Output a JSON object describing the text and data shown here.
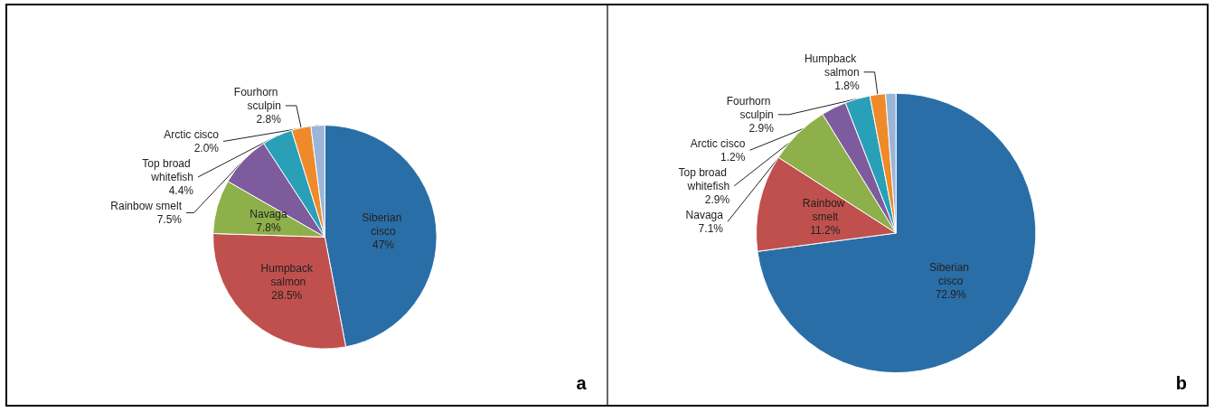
{
  "chart_data": [
    {
      "type": "pie",
      "categories": [
        "Siberian cisco",
        "Humpback salmon",
        "Navaga",
        "Rainbow smelt",
        "Top broad whitefish",
        "Fourhorn sculpin",
        "Arctic cisco"
      ],
      "values": [
        47,
        28.5,
        7.8,
        7.5,
        4.4,
        2.8,
        2.0
      ],
      "value_labels": [
        "47%",
        "28.5%",
        "7.8%",
        "7.5%",
        "4.4%",
        "2.8%",
        "2.0%"
      ],
      "colors": [
        "#2a6ea8",
        "#c0504d",
        "#8db04a",
        "#7d5b9c",
        "#2a9fb8",
        "#ef8a2b",
        "#9bb5d8"
      ],
      "annotations": [
        "a"
      ]
    },
    {
      "type": "pie",
      "categories": [
        "Siberian cisco",
        "Rainbow smelt",
        "Navaga",
        "Top broad whitefish",
        "Fourhorn sculpin",
        "Humpback salmon",
        "Arctic cisco"
      ],
      "values": [
        72.9,
        11.2,
        7.1,
        2.9,
        2.9,
        1.8,
        1.2
      ],
      "value_labels": [
        "72.9%",
        "11.2%",
        "7.1%",
        "2.9%",
        "2.9%",
        "1.8%",
        "1.2%"
      ],
      "colors": [
        "#2a6ea8",
        "#c0504d",
        "#8db04a",
        "#7d5b9c",
        "#2a9fb8",
        "#ef8a2b",
        "#9bb5d8"
      ],
      "annotations": [
        "b"
      ]
    }
  ]
}
